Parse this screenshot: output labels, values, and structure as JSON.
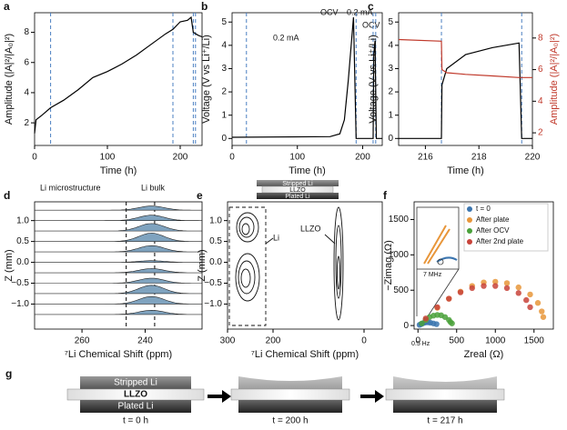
{
  "chart_data": [
    {
      "panel_label": "a",
      "type": "line",
      "xlabel": "Time (h)",
      "ylabel": "Amplitude (|A|²/|A₀|²)",
      "x": [
        0,
        2,
        10,
        22,
        40,
        60,
        80,
        100,
        120,
        140,
        160,
        180,
        190,
        200,
        210,
        215,
        218,
        225,
        230
      ],
      "series": [
        {
          "color": "#000000",
          "values": [
            1.3,
            2.2,
            2.5,
            3.0,
            3.5,
            4.2,
            5.0,
            5.4,
            5.9,
            6.5,
            7.2,
            7.9,
            8.2,
            8.7,
            8.8,
            9.0,
            8.0,
            7.8,
            7.7
          ]
        }
      ],
      "xlim": [
        0,
        230
      ],
      "ylim": [
        0.5,
        9.3
      ],
      "xticks": [
        0,
        100,
        200
      ],
      "yticks": [
        2,
        4,
        6,
        8
      ],
      "vlines": [
        22,
        190,
        218,
        221
      ],
      "vline_color": "#4a7fc1"
    },
    {
      "panel_label": "b",
      "type": "line",
      "xlabel": "Time (h)",
      "ylabel": "Voltage (V vs Li⁺/Li)",
      "x": [
        0,
        150,
        165,
        172,
        178,
        186,
        190,
        216,
        217,
        219,
        221,
        230
      ],
      "series": [
        {
          "color": "#000000",
          "values": [
            0.05,
            0.08,
            0.2,
            0.8,
            2.5,
            5.2,
            0,
            0,
            3.6,
            4.2,
            0,
            0
          ]
        }
      ],
      "xlim": [
        0,
        230
      ],
      "ylim": [
        -0.3,
        5.4
      ],
      "xticks": [
        0,
        100,
        200
      ],
      "yticks": [
        0,
        1,
        2,
        3,
        4,
        5
      ],
      "vlines": [
        22,
        190,
        216,
        220
      ],
      "vline_color": "#4a7fc1",
      "annotations": [
        "0.2 mA",
        "OCV",
        "0.2 mA",
        "OCV"
      ]
    },
    {
      "panel_label": "c",
      "type": "line",
      "xlabel": "Time (h)",
      "ylabel": "Voltage (V vs Li⁺/Li)",
      "y2label": "Amplitude (|A|²/|A₀|²)",
      "x": [
        215,
        216.6,
        216.62,
        216.8,
        217.5,
        218.5,
        219.5,
        219.6,
        220
      ],
      "series": [
        {
          "color": "#000000",
          "values": [
            0,
            0,
            2.3,
            3.0,
            3.6,
            3.9,
            4.1,
            0,
            0
          ]
        },
        {
          "color": "#c0392b",
          "axis": "y2",
          "values": [
            7.9,
            7.8,
            6.0,
            5.8,
            5.7,
            5.6,
            5.5,
            5.5,
            5.5
          ]
        }
      ],
      "xlim": [
        215,
        220
      ],
      "ylim": [
        -0.3,
        5.4
      ],
      "y2lim": [
        1.2,
        9.6
      ],
      "xticks": [
        216,
        218,
        220
      ],
      "yticks": [
        0,
        1,
        2,
        3,
        4,
        5
      ],
      "y2ticks": [
        2,
        4,
        6,
        8
      ],
      "vlines": [
        216.6,
        219.6
      ],
      "vline_color": "#4a7fc1"
    },
    {
      "panel_label": "d",
      "type": "ridgeline",
      "xlabel": "⁷Li Chemical Shift (ppm)",
      "ylabel": "Z (mm)",
      "z": [
        1.25,
        1.0,
        0.75,
        0.5,
        0.25,
        0,
        -0.25,
        -0.5,
        -0.75,
        -1.0,
        -1.25
      ],
      "peak_heights": [
        0.1,
        0.13,
        0.18,
        0.2,
        0.15,
        0.04,
        0.1,
        0.12,
        0.2,
        0.18,
        0.1
      ],
      "peak_center": 238,
      "peak_width": 4,
      "color": "#7fa3bf",
      "xlim": [
        275,
        222
      ],
      "ylim": [
        -1.6,
        1.45
      ],
      "xticks": [
        260,
        240
      ],
      "yticks": [
        {
          "value": -1,
          "label": "−1.0"
        },
        {
          "value": -0.5,
          "label": "−0.5"
        },
        {
          "value": 0,
          "label": "0.0"
        },
        0.5,
        {
          "value": 1,
          "label": "1.0"
        }
      ],
      "vlines": [
        246,
        237
      ],
      "vline_color": "#000000",
      "annotations": [
        "Li microstructure",
        "Li bulk"
      ]
    },
    {
      "panel_label": "e",
      "type": "contour",
      "xlabel": "⁷Li Chemical Shift (ppm)",
      "ylabel": "Z (mm)",
      "xlim": [
        300,
        -40
      ],
      "ylim": [
        -1.6,
        1.45
      ],
      "xticks": [
        300,
        200,
        0
      ],
      "yticks": [
        {
          "value": -1,
          "label": "−1.0"
        },
        {
          "value": -0.5,
          "label": "−0.5"
        },
        {
          "value": 0,
          "label": "0.0"
        },
        0.5,
        {
          "value": 1,
          "label": "1.0"
        }
      ],
      "annotations": [
        "Li",
        "LLZO"
      ],
      "stack": [
        "Stripped Li",
        "LLZO",
        "Plated Li"
      ]
    },
    {
      "panel_label": "f",
      "type": "scatter",
      "xlabel": "Zreal (Ω)",
      "ylabel": "−Zimag (Ω)",
      "xlim": [
        -50,
        1750
      ],
      "ylim": [
        -50,
        1750
      ],
      "xticks": [
        0,
        500,
        1000,
        1500
      ],
      "yticks": [
        0,
        500,
        1000,
        1500
      ],
      "legend": "upper right",
      "series": [
        {
          "name": "t = 0",
          "color": "#3b75af",
          "x": [
            20,
            40,
            60,
            80,
            100,
            130,
            160,
            200,
            240
          ],
          "values": [
            10,
            20,
            30,
            40,
            45,
            45,
            40,
            30,
            20
          ]
        },
        {
          "name": "After plate",
          "color": "#e8963a",
          "x": [
            100,
            250,
            400,
            550,
            700,
            850,
            1000,
            1150,
            1300,
            1450,
            1550,
            1600,
            1620
          ],
          "values": [
            80,
            250,
            380,
            480,
            560,
            610,
            620,
            600,
            540,
            440,
            320,
            200,
            120
          ]
        },
        {
          "name": "After OCV",
          "color": "#4aa13a",
          "x": [
            50,
            100,
            150,
            200,
            250,
            300,
            350,
            400,
            420,
            440
          ],
          "values": [
            30,
            80,
            120,
            140,
            150,
            145,
            120,
            80,
            50,
            30
          ]
        },
        {
          "name": "After 2nd plate",
          "color": "#c8433a",
          "x": [
            100,
            250,
            400,
            550,
            700,
            850,
            1000,
            1150,
            1300,
            1400,
            1450
          ],
          "values": [
            100,
            260,
            380,
            470,
            530,
            560,
            560,
            530,
            460,
            360,
            260
          ]
        }
      ],
      "annotations": [
        "7 MHz",
        "0.5 Hz"
      ]
    }
  ],
  "diagram": {
    "panel_label": "g",
    "layers": [
      "Stripped Li",
      "LLZO",
      "Plated Li"
    ],
    "times": [
      "t = 0 h",
      "t = 200 h",
      "t = 217 h"
    ]
  }
}
